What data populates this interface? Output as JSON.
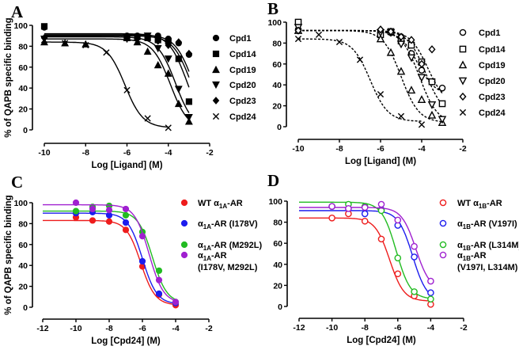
{
  "chart_data": [
    {
      "type": "scatter",
      "panel": "A",
      "ylabel": "% of QAPB specific binding",
      "xlabel": "Log [Ligand] (M)",
      "xlim": [
        -10,
        -2
      ],
      "ylim": [
        0,
        100
      ],
      "xticks": [
        "-10",
        "-8",
        "-6",
        "-4",
        "-2"
      ],
      "yticks": [
        "0",
        "20",
        "40",
        "60",
        "80",
        "100"
      ],
      "fit_style": "solid",
      "marker_fill": "filled",
      "legend_position": "right",
      "series": [
        {
          "name": "Cpd1",
          "marker": "circle",
          "color": "#000000",
          "x": [
            -10,
            -6,
            -5.5,
            -5,
            -4.5,
            -4,
            -3.5,
            -3
          ],
          "y": [
            98,
            90,
            90,
            89,
            90,
            87,
            83,
            72
          ],
          "fit": {
            "top": 91,
            "bottom": 0,
            "logIC50": -2.8,
            "xmax": -3
          }
        },
        {
          "name": "Cpd14",
          "marker": "square",
          "color": "#000000",
          "x": [
            -10,
            -6,
            -5.5,
            -5,
            -4.5,
            -4,
            -3.5,
            -3
          ],
          "y": [
            99,
            89,
            89,
            88,
            86,
            85,
            68,
            27
          ],
          "fit": {
            "top": 92,
            "bottom": 0,
            "logIC50": -3.1,
            "xmax": -3
          }
        },
        {
          "name": "Cpd19",
          "marker": "triangle-up",
          "color": "#000000",
          "x": [
            -10,
            -9,
            -8,
            -6,
            -5.5,
            -5,
            -4.5,
            -4,
            -3.5,
            -3
          ],
          "y": [
            84,
            83,
            82,
            88,
            84,
            75,
            62,
            54,
            25,
            8
          ],
          "fit": {
            "top": 87,
            "bottom": 0,
            "logIC50": -3.9,
            "xmax": -3
          }
        },
        {
          "name": "Cpd20",
          "marker": "triangle-down",
          "color": "#000000",
          "x": [
            -10,
            -6,
            -5.5,
            -5,
            -4.5,
            -4,
            -3.5,
            -3
          ],
          "y": [
            87,
            87,
            88,
            90,
            78,
            68,
            39,
            12
          ],
          "fit": {
            "top": 89,
            "bottom": 0,
            "logIC50": -3.65,
            "xmax": -3
          }
        },
        {
          "name": "Cpd23",
          "marker": "diamond",
          "color": "#000000",
          "x": [
            -10,
            -6,
            -5.5,
            -5,
            -4.5,
            -4,
            -3.5,
            -3
          ],
          "y": [
            88,
            88,
            87,
            89,
            85,
            81,
            84,
            73
          ],
          "fit": {
            "top": 90,
            "bottom": 0,
            "logIC50": -2.9,
            "xmax": -3
          }
        },
        {
          "name": "Cpd24",
          "marker": "x",
          "color": "#000000",
          "x": [
            -10,
            -9,
            -8,
            -7,
            -6,
            -5,
            -4
          ],
          "y": [
            86,
            83,
            81,
            74,
            38,
            11,
            2
          ],
          "fit": {
            "top": 84,
            "bottom": 2,
            "logIC50": -6.1,
            "xmax": -4
          }
        }
      ]
    },
    {
      "type": "scatter",
      "panel": "B",
      "ylabel": "",
      "xlabel": "Log [Ligand] (M)",
      "xlim": [
        -10,
        -2
      ],
      "ylim": [
        0,
        100
      ],
      "xticks": [
        "-10",
        "-8",
        "-6",
        "-4",
        "-2"
      ],
      "yticks": [
        "0",
        "20",
        "40",
        "60",
        "80",
        "100"
      ],
      "fit_style": "dashed",
      "marker_fill": "open",
      "legend_position": "right",
      "series": [
        {
          "name": "Cpd1",
          "marker": "circle",
          "color": "#000000",
          "x": [
            -10,
            -6,
            -5.5,
            -5,
            -4.5,
            -4,
            -3.5,
            -3
          ],
          "y": [
            93,
            90,
            90,
            86,
            70,
            54,
            43,
            37
          ],
          "fit": {
            "top": 92,
            "bottom": 30,
            "logIC50": -4.2,
            "xmax": -3
          }
        },
        {
          "name": "Cpd14",
          "marker": "square",
          "color": "#000000",
          "x": [
            -10,
            -6,
            -5.5,
            -5,
            -4.5,
            -4,
            -3.5,
            -3
          ],
          "y": [
            100,
            88,
            91,
            82,
            78,
            62,
            43,
            22
          ],
          "fit": {
            "top": 92,
            "bottom": 10,
            "logIC50": -3.8,
            "xmax": -3
          }
        },
        {
          "name": "Cpd19",
          "marker": "triangle-up",
          "color": "#000000",
          "x": [
            -10,
            -6,
            -5.5,
            -5,
            -4.5,
            -4,
            -3.5,
            -3
          ],
          "y": [
            92,
            84,
            71,
            53,
            35,
            26,
            11,
            4
          ],
          "fit": {
            "top": 92,
            "bottom": 4,
            "logIC50": -5.0,
            "xmax": -3
          }
        },
        {
          "name": "Cpd20",
          "marker": "triangle-down",
          "color": "#000000",
          "x": [
            -10,
            -6,
            -5.5,
            -5,
            -4.5,
            -4,
            -3.5,
            -3
          ],
          "y": [
            95,
            90,
            90,
            79,
            66,
            47,
            21,
            7
          ],
          "fit": {
            "top": 92,
            "bottom": 3,
            "logIC50": -4.1,
            "xmax": -3
          }
        },
        {
          "name": "Cpd23",
          "marker": "diamond",
          "color": "#000000",
          "x": [
            -10,
            -6,
            -5.5,
            -5,
            -4.5,
            -4,
            -3.5
          ],
          "y": [
            92,
            93,
            91,
            86,
            83,
            60,
            74
          ],
          "fit": {
            "top": 92,
            "bottom": 20,
            "logIC50": -3.7,
            "xmax": -3
          }
        },
        {
          "name": "Cpd24",
          "marker": "x",
          "color": "#000000",
          "x": [
            -10,
            -9,
            -8,
            -7,
            -6,
            -5,
            -4
          ],
          "y": [
            84,
            88,
            81,
            64,
            31,
            10,
            2
          ],
          "fit": {
            "top": 84,
            "bottom": 5,
            "logIC50": -6.5,
            "xmax": -4
          }
        }
      ]
    },
    {
      "type": "scatter",
      "panel": "C",
      "ylabel": "% of QAPB specific binding",
      "xlabel": "Log [Cpd24] (M)",
      "xlim": [
        -12,
        -2
      ],
      "ylim": [
        0,
        100
      ],
      "xticks": [
        "-12",
        "-10",
        "-8",
        "-6",
        "-4",
        "-2"
      ],
      "yticks": [
        "0",
        "20",
        "40",
        "60",
        "80",
        "100"
      ],
      "fit_style": "solid",
      "marker_fill": "filled",
      "legend_position": "right",
      "series": [
        {
          "name": "WT α1A-AR",
          "pre": "WT α",
          "sub": "1A",
          "post": "-AR",
          "line2": "",
          "marker": "circle",
          "color": "#ee1c1c",
          "x": [
            -10,
            -9,
            -8,
            -7,
            -6,
            -5,
            -4
          ],
          "y": [
            86,
            83,
            82,
            74,
            39,
            12,
            2
          ],
          "fit": {
            "top": 83,
            "bottom": 2,
            "logIC50": -6.1,
            "xmax": -4
          }
        },
        {
          "name": "α1A-AR (I178V)",
          "pre": "α",
          "sub": "1A",
          "post": "-AR (I178V)",
          "line2": "",
          "marker": "circle",
          "color": "#1c1cee",
          "x": [
            -10,
            -9,
            -8,
            -7,
            -6,
            -5,
            -4
          ],
          "y": [
            90,
            91,
            88,
            81,
            44,
            13,
            4
          ],
          "fit": {
            "top": 90,
            "bottom": 3,
            "logIC50": -6.0,
            "xmax": -4
          }
        },
        {
          "name": "α1A-AR (M292L)",
          "pre": "α",
          "sub": "1A",
          "post": "-AR (M292L)",
          "line2": "",
          "marker": "circle",
          "color": "#22bb22",
          "x": [
            -10,
            -9,
            -8,
            -7,
            -6,
            -5,
            -4
          ],
          "y": [
            92,
            96,
            97,
            88,
            72,
            35,
            5
          ],
          "fit": {
            "top": 92,
            "bottom": 4,
            "logIC50": -5.4,
            "xmax": -4
          }
        },
        {
          "name": "α1A-AR (I178V, M292L)",
          "pre": "α",
          "sub": "1A",
          "post": "-AR",
          "line2": "(I178V, M292L)",
          "marker": "circle",
          "color": "#a020d0",
          "x": [
            -10,
            -9,
            -8,
            -7,
            -6,
            -5,
            -4
          ],
          "y": [
            100,
            94,
            93,
            94,
            68,
            26,
            5
          ],
          "fit": {
            "top": 98,
            "bottom": 4,
            "logIC50": -5.6,
            "xmax": -4
          }
        }
      ]
    },
    {
      "type": "scatter",
      "panel": "D",
      "ylabel": "",
      "xlabel": "Log [Cpd24] (M)",
      "xlim": [
        -12,
        -2
      ],
      "ylim": [
        0,
        100
      ],
      "xticks": [
        "-12",
        "-10",
        "-8",
        "-6",
        "-4",
        "-2"
      ],
      "yticks": [
        "0",
        "20",
        "40",
        "60",
        "80",
        "100"
      ],
      "fit_style": "solid",
      "marker_fill": "open",
      "legend_position": "right",
      "series": [
        {
          "name": "WT α1B-AR",
          "pre": "WT α",
          "sub": "1B",
          "post": "-AR",
          "line2": "",
          "marker": "circle",
          "color": "#ee1c1c",
          "x": [
            -10,
            -9,
            -8,
            -7,
            -6,
            -5,
            -4
          ],
          "y": [
            84,
            88,
            81,
            64,
            31,
            10,
            2
          ],
          "fit": {
            "top": 84,
            "bottom": 5,
            "logIC50": -6.5,
            "xmax": -4
          }
        },
        {
          "name": "α1B-AR (V197I)",
          "pre": "α",
          "sub": "1B",
          "post": "-AR (V197I)",
          "line2": "",
          "marker": "circle",
          "color": "#1c1cee",
          "x": [
            -10,
            -9,
            -8,
            -7,
            -6,
            -5,
            -4
          ],
          "y": [
            95,
            93,
            88,
            92,
            77,
            47,
            13
          ],
          "fit": {
            "top": 91,
            "bottom": 5,
            "logIC50": -5.1,
            "xmax": -4
          }
        },
        {
          "name": "α1B-AR (L314M)",
          "pre": "α",
          "sub": "1B",
          "post": "-AR (L314M)",
          "line2": "",
          "marker": "circle",
          "color": "#22bb22",
          "x": [
            -10,
            -9,
            -8,
            -7,
            -6,
            -5,
            -4
          ],
          "y": [
            95,
            97,
            95,
            91,
            46,
            14,
            7
          ],
          "fit": {
            "top": 99,
            "bottom": 7,
            "logIC50": -6.1,
            "xmax": -4
          }
        },
        {
          "name": "α1B-AR (V197I, L314M)",
          "pre": "α",
          "sub": "1B",
          "post": "-AR",
          "line2": "(V197I, L314M)",
          "marker": "circle",
          "color": "#a020d0",
          "x": [
            -10,
            -9,
            -8,
            -7,
            -6,
            -5,
            -4
          ],
          "y": [
            95,
            93,
            94,
            97,
            82,
            57,
            24
          ],
          "fit": {
            "top": 94,
            "bottom": 15,
            "logIC50": -4.9,
            "xmax": -4
          }
        }
      ]
    }
  ]
}
